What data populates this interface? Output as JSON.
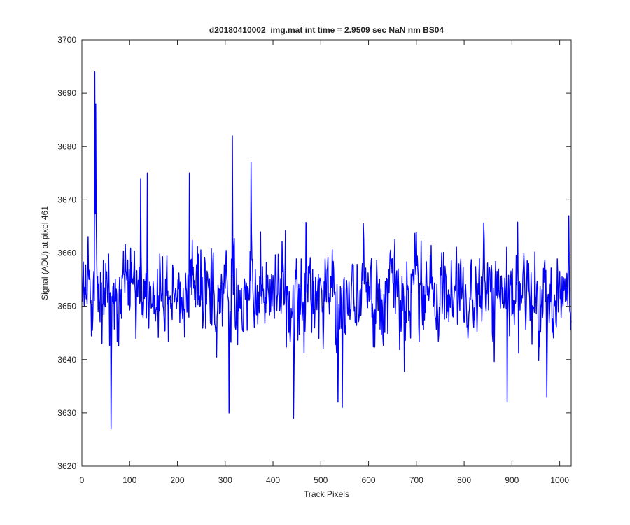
{
  "chart_data": {
    "type": "line",
    "title": "d20180410002_img.mat int time = 2.9509 sec  NaN nm BS04",
    "xlabel": "Track Pixels",
    "ylabel": "Signal (ADU) at pixel 461",
    "xlim": [
      0,
      1024
    ],
    "ylim": [
      3620,
      3700
    ],
    "xticks": [
      0,
      100,
      200,
      300,
      400,
      500,
      600,
      700,
      800,
      900,
      1000
    ],
    "yticks": [
      3620,
      3630,
      3640,
      3650,
      3660,
      3670,
      3680,
      3690,
      3700
    ],
    "grid": false,
    "box": true,
    "series": [
      {
        "color": "#0000ff",
        "x_start": 1,
        "x_end": 1024,
        "baseline": 3652,
        "noise_std": 6,
        "seed": 461,
        "peaks": [
          {
            "x": 27,
            "y": 3694
          },
          {
            "x": 29,
            "y": 3688
          },
          {
            "x": 315,
            "y": 3682
          },
          {
            "x": 137,
            "y": 3675
          },
          {
            "x": 225,
            "y": 3675
          },
          {
            "x": 123,
            "y": 3674
          },
          {
            "x": 354,
            "y": 3677
          },
          {
            "x": 308,
            "y": 3630
          },
          {
            "x": 61,
            "y": 3627
          },
          {
            "x": 443,
            "y": 3629
          },
          {
            "x": 536,
            "y": 3632
          },
          {
            "x": 545,
            "y": 3631
          },
          {
            "x": 890,
            "y": 3632
          },
          {
            "x": 973,
            "y": 3633
          },
          {
            "x": 1019,
            "y": 3667
          }
        ]
      }
    ]
  }
}
